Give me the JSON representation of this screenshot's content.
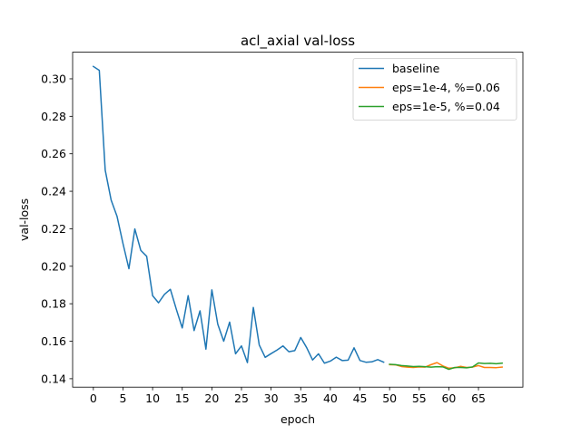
{
  "chart_data": {
    "type": "line",
    "title": "acl_axial val-loss",
    "xlabel": "epoch",
    "ylabel": "val-loss",
    "xlim": [
      -3.5,
      72.5
    ],
    "ylim": [
      0.1355,
      0.3142
    ],
    "xticks": [
      0,
      5,
      10,
      15,
      20,
      25,
      30,
      35,
      40,
      45,
      50,
      55,
      60,
      65
    ],
    "yticks": [
      0.14,
      0.16,
      0.18,
      0.2,
      0.22,
      0.24,
      0.26,
      0.28,
      0.3
    ],
    "ytick_labels": [
      "0.14",
      "0.16",
      "0.18",
      "0.20",
      "0.22",
      "0.24",
      "0.26",
      "0.28",
      "0.30"
    ],
    "grid": false,
    "legend_position": "top-right",
    "series": [
      {
        "name": "baseline",
        "color": "#1f77b4",
        "x": [
          0,
          1,
          2,
          3,
          4,
          5,
          6,
          7,
          8,
          9,
          10,
          11,
          12,
          13,
          14,
          15,
          16,
          17,
          18,
          19,
          20,
          21,
          22,
          23,
          24,
          25,
          26,
          27,
          28,
          29,
          30,
          31,
          32,
          33,
          34,
          35,
          36,
          37,
          38,
          39,
          40,
          41,
          42,
          43,
          44,
          45,
          46,
          47,
          48,
          49
        ],
        "values": [
          0.3066,
          0.3045,
          0.2513,
          0.2353,
          0.2266,
          0.2121,
          0.1987,
          0.2199,
          0.2085,
          0.2053,
          0.1843,
          0.1805,
          0.185,
          0.1877,
          0.1771,
          0.1671,
          0.1843,
          0.1657,
          0.1762,
          0.1558,
          0.1874,
          0.1691,
          0.16,
          0.1702,
          0.1533,
          0.1575,
          0.1486,
          0.178,
          0.158,
          0.1514,
          0.1534,
          0.1553,
          0.1575,
          0.1544,
          0.155,
          0.162,
          0.1566,
          0.15,
          0.1533,
          0.1483,
          0.1494,
          0.1515,
          0.1497,
          0.1499,
          0.1565,
          0.1497,
          0.1488,
          0.149,
          0.1502,
          0.1488
        ]
      },
      {
        "name": "eps=1e-4, %=0.06",
        "color": "#ff7f0e",
        "x": [
          50,
          51,
          52,
          53,
          54,
          55,
          56,
          57,
          58,
          59,
          60,
          61,
          62,
          63,
          64,
          65,
          66,
          67,
          68,
          69
        ],
        "values": [
          0.1475,
          0.1474,
          0.1465,
          0.1462,
          0.146,
          0.1463,
          0.1462,
          0.1475,
          0.1486,
          0.1468,
          0.1456,
          0.1458,
          0.1466,
          0.146,
          0.1462,
          0.147,
          0.146,
          0.146,
          0.1459,
          0.1462
        ]
      },
      {
        "name": "eps=1e-5, %=0.04",
        "color": "#2ca02c",
        "x": [
          50,
          51,
          52,
          53,
          54,
          55,
          56,
          57,
          58,
          59,
          60,
          61,
          62,
          63,
          64,
          65,
          66,
          67,
          68,
          69
        ],
        "values": [
          0.1477,
          0.1475,
          0.147,
          0.1468,
          0.1465,
          0.1466,
          0.1464,
          0.1462,
          0.1464,
          0.1463,
          0.145,
          0.146,
          0.146,
          0.1458,
          0.1463,
          0.1484,
          0.1481,
          0.1482,
          0.148,
          0.1483
        ]
      }
    ]
  }
}
